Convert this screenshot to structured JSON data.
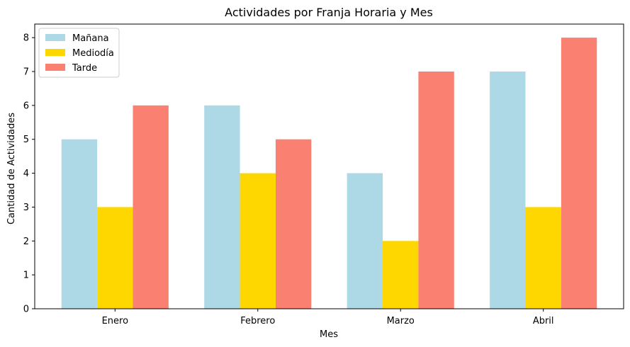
{
  "chart_data": {
    "type": "bar",
    "title": "Actividades por Franja Horaria y Mes",
    "xlabel": "Mes",
    "ylabel": "Cantidad de Actividades",
    "categories": [
      "Enero",
      "Febrero",
      "Marzo",
      "Abril"
    ],
    "series": [
      {
        "name": "Mañana",
        "color": "#add8e6",
        "values": [
          5,
          6,
          4,
          7
        ]
      },
      {
        "name": "Mediodía",
        "color": "#ffd700",
        "values": [
          3,
          4,
          2,
          3
        ]
      },
      {
        "name": "Tarde",
        "color": "#fa8072",
        "values": [
          6,
          5,
          7,
          8
        ]
      }
    ],
    "ylim": [
      0,
      8.4
    ],
    "yticks": [
      0,
      1,
      2,
      3,
      4,
      5,
      6,
      7,
      8
    ],
    "grid": false,
    "legend_position": "top-left"
  }
}
